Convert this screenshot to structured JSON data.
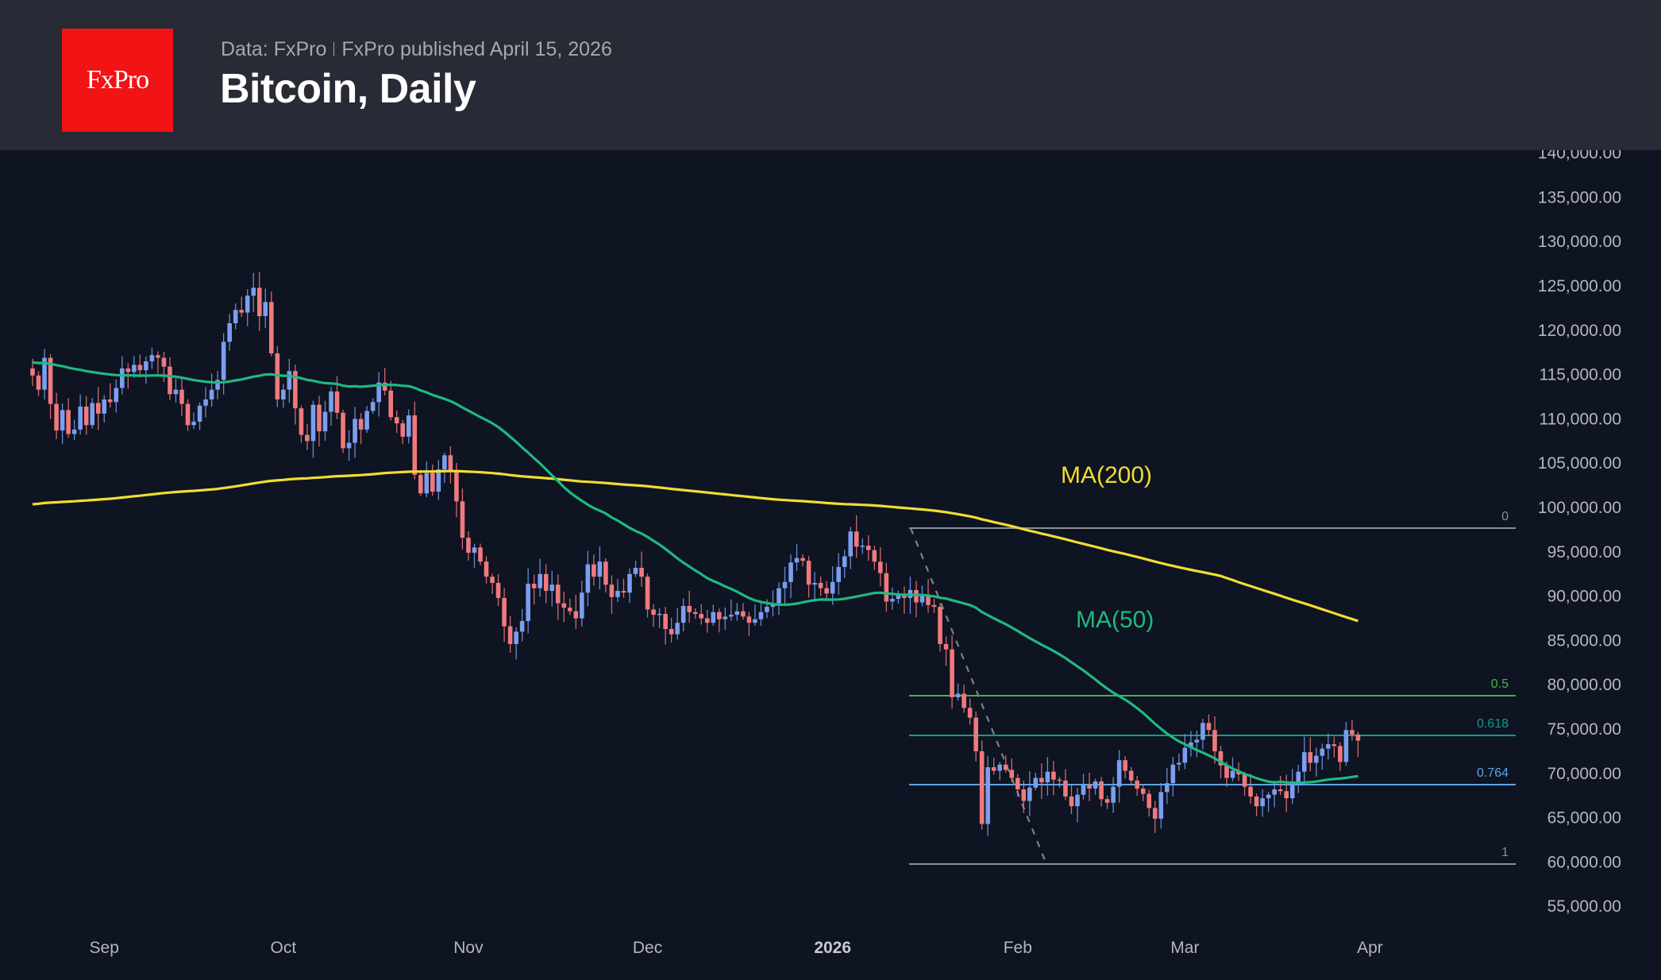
{
  "header": {
    "logo_text": "FxPro",
    "data_source": "Data: FxPro",
    "published": "FxPro published April 15, 2026",
    "title": "Bitcoin, Daily"
  },
  "colors": {
    "background": "#0e1421",
    "header_bg": "#282a35",
    "logo_red": "#f21314",
    "up_candle": "#7b9ef0",
    "down_candle": "#f0797e",
    "ma50": "#1fb980",
    "ma200": "#f2dc33",
    "fib_0": "#8c8f96",
    "fib_05": "#4caf50",
    "fib_0618": "#149b8c",
    "fib_0764": "#5aa5e6",
    "fib_1": "#8c8f96",
    "trendline": "#7d8088"
  },
  "chart_data": {
    "type": "candlestick",
    "title": "Bitcoin, Daily",
    "xlabel": "",
    "ylabel": "",
    "ylim": [
      52000,
      141000
    ],
    "y_ticks": [
      "140,000.00",
      "135,000.00",
      "130,000.00",
      "125,000.00",
      "120,000.00",
      "115,000.00",
      "110,000.00",
      "105,000.00",
      "100,000.00",
      "95,000.00",
      "90,000.00",
      "85,000.00",
      "80,000.00",
      "75,000.00",
      "70,000.00",
      "65,000.00",
      "60,000.00",
      "55,000.00"
    ],
    "x_ticks": [
      {
        "label": "Sep",
        "day": 12
      },
      {
        "label": "Oct",
        "day": 42
      },
      {
        "label": "Nov",
        "day": 73
      },
      {
        "label": "Dec",
        "day": 103
      },
      {
        "label": "2026",
        "day": 134,
        "bold": true
      },
      {
        "label": "Feb",
        "day": 165
      },
      {
        "label": "Mar",
        "day": 193
      },
      {
        "label": "Apr",
        "day": 224
      }
    ],
    "start_date": "Aug 20",
    "end_date": "Apr 15",
    "closes": [
      114800,
      113200,
      116800,
      111600,
      108600,
      110900,
      108200,
      108700,
      111300,
      109200,
      111700,
      110500,
      112100,
      111800,
      113400,
      115600,
      115200,
      116000,
      115400,
      116400,
      117100,
      116800,
      115800,
      112700,
      113200,
      111600,
      109200,
      109600,
      111400,
      112100,
      113200,
      114300,
      118600,
      120700,
      122200,
      121900,
      123800,
      124700,
      121500,
      123100,
      117300,
      112100,
      113200,
      115300,
      111100,
      108100,
      107400,
      111500,
      108500,
      110700,
      113000,
      110600,
      106600,
      107200,
      109900,
      108700,
      110800,
      111800,
      114000,
      113100,
      110100,
      109400,
      107900,
      110300,
      103600,
      101500,
      103800,
      101700,
      104200,
      105800,
      104100,
      100600,
      96500,
      94800,
      95400,
      93800,
      92100,
      91400,
      89700,
      86500,
      84500,
      85900,
      87100,
      91300,
      90800,
      92400,
      90500,
      91200,
      89100,
      88600,
      88200,
      87400,
      90300,
      93500,
      92100,
      93800,
      91200,
      89800,
      90500,
      90300,
      92400,
      93100,
      92100,
      88400,
      87800,
      87900,
      86200,
      85600,
      86900,
      88800,
      88100,
      87900,
      87400,
      86900,
      88100,
      87300,
      87600,
      87800,
      88200,
      87600,
      86900,
      87300,
      88100,
      88700,
      89100,
      90800,
      91500,
      93700,
      94200,
      93900,
      91200,
      91400,
      90800,
      90200,
      91500,
      93200,
      94400,
      97200,
      95500,
      95600,
      95100,
      93800,
      92500,
      89300,
      89600,
      90100,
      89700,
      90600,
      89200,
      90100,
      88900,
      88700,
      84500,
      83900,
      78500,
      78900,
      77300,
      76200,
      72400,
      64200,
      70600,
      70200,
      70900,
      70300,
      69400,
      68100,
      66800,
      68300,
      69400,
      68900,
      70100,
      69200,
      69100,
      67300,
      66200,
      67500,
      68600,
      68200,
      69000,
      67000,
      66600,
      68400,
      71400,
      70200,
      69100,
      68200,
      67600,
      66000,
      64800,
      67800,
      68800,
      70900,
      71100,
      72800,
      73400,
      73700,
      75600,
      74800,
      72400,
      70800,
      69400,
      70200,
      69800,
      68400,
      67300,
      66200,
      67100,
      67500,
      68100,
      67900,
      67100,
      68600,
      70100,
      72300,
      71100,
      71900,
      72700,
      73200,
      73000,
      71200,
      74800,
      74300,
      73600
    ],
    "ma50": {
      "label": "MA(50)",
      "start": 116300,
      "end": 69600
    },
    "ma200": {
      "label": "MA(200)",
      "start": 100200,
      "end": 87100
    },
    "fibonacci": {
      "high": 97800,
      "low": 60000,
      "levels": [
        {
          "ratio": "0",
          "price": 97800
        },
        {
          "ratio": "0.5",
          "price": 78900
        },
        {
          "ratio": "0.618",
          "price": 74400
        },
        {
          "ratio": "0.764",
          "price": 68900
        },
        {
          "ratio": "1",
          "price": 60000
        }
      ]
    },
    "legend_position": "inline-labels",
    "grid": false
  }
}
